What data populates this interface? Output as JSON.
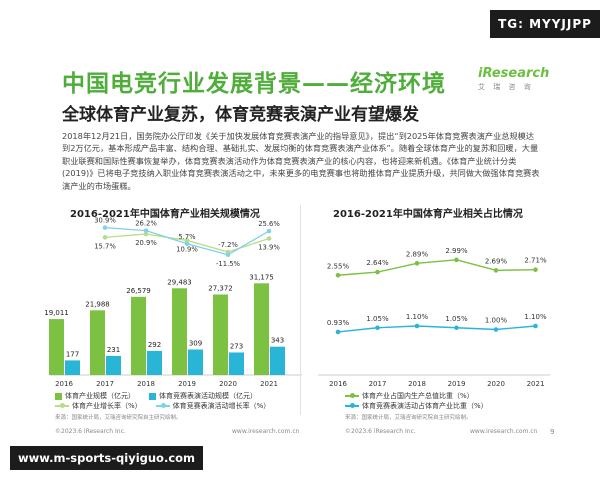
{
  "watermark_top": "TG: MYYJJPP",
  "watermark_bottom": "www.m-sports-qiyiguo.com",
  "header": {
    "title": "中国电竞行业发展背景——经济环境",
    "logo_brand": "iResearch",
    "logo_sub": "艾 瑞 咨 询",
    "subtitle": "全球体育产业复苏，体育竞赛表演产业有望爆发"
  },
  "paragraph": "2018年12月21日，国务院办公厅印发《关于加快发展体育竞赛表演产业的指导意见》，提出“到2025年体育竞赛表演产业总规模达到2万亿元，基本形成产品丰富、结构合理、基础扎实、发展均衡的体育竞赛表演产业体系”。随着全球体育产业的复苏和回暖，大量职业联赛和国际性赛事恢复举办，体育竞赛表演活动作为体育竞赛表演产业的核心内容，也将迎来新机遇。《体育产业统计分类(2019)》已将电子竞技纳入职业体育竞赛表演活动之中，未来更多的电竞赛事也将助推体育产业提质升级，共同做大做强体育竞赛表演产业的市场蛋糕。",
  "colors": {
    "green": "#7cc142",
    "blue": "#29b6d6",
    "title_green": "#4fae3a"
  },
  "chart_data": [
    {
      "type": "bar",
      "title": "2016-2021年中国体育产业相关规模情况",
      "categories": [
        "2016",
        "2017",
        "2018",
        "2019",
        "2020",
        "2021"
      ],
      "series": [
        {
          "name": "体育产业规模（亿元）",
          "values": [
            19011,
            21988,
            26579,
            29483,
            27372,
            31175
          ],
          "labels": [
            "19,011",
            "21,988",
            "26,579",
            "29,483",
            "27,372",
            "31,175"
          ]
        },
        {
          "name": "体育竞赛表演活动规模（亿元）",
          "values": [
            177,
            231,
            292,
            309,
            273,
            343
          ],
          "labels": [
            "177",
            "231",
            "292",
            "309",
            "273",
            "343"
          ]
        }
      ],
      "lines": [
        {
          "name": "体育产业增长率（%）",
          "values": [
            null,
            15.7,
            20.9,
            10.9,
            -7.2,
            13.9
          ],
          "labels": [
            "",
            "15.7%",
            "20.9%",
            "10.9%",
            "-7.2%",
            "13.9%"
          ]
        },
        {
          "name": "体育竞赛表演活动增长率（%）",
          "values": [
            null,
            30.9,
            26.2,
            5.7,
            -11.5,
            25.6
          ],
          "labels": [
            "",
            "30.9%",
            "26.2%",
            "5.7%",
            "-11.5%",
            "25.6%"
          ]
        }
      ],
      "source": "来源：国家统计局，艾瑞咨询研究院自主研究绘制。",
      "footer_left": "©2023.6 iResearch Inc.",
      "footer_right": "www.iresearch.com.cn"
    },
    {
      "type": "line",
      "title": "2016-2021年中国体育产业相关占比情况",
      "categories": [
        "2016",
        "2017",
        "2018",
        "2019",
        "2020",
        "2021"
      ],
      "series": [
        {
          "name": "体育产业占国内生产总值比重（%）",
          "values": [
            2.55,
            2.64,
            2.89,
            2.99,
            2.69,
            2.71
          ],
          "labels": [
            "2.55%",
            "2.64%",
            "2.89%",
            "2.99%",
            "2.69%",
            "2.71%"
          ]
        },
        {
          "name": "体育竞赛表演活动占体育产业比重（%）",
          "values": [
            0.93,
            1.05,
            1.1,
            1.05,
            1.0,
            1.1
          ],
          "labels": [
            "0.93%",
            "1.05%",
            "1.10%",
            "1.05%",
            "1.00%",
            "1.10%"
          ]
        }
      ],
      "source": "来源：国家统计局，艾瑞咨询研究院自主研究绘制。",
      "footer_left": "©2023.6 iResearch Inc.",
      "footer_right": "www.iresearch.com.cn"
    }
  ],
  "page_number": "9"
}
